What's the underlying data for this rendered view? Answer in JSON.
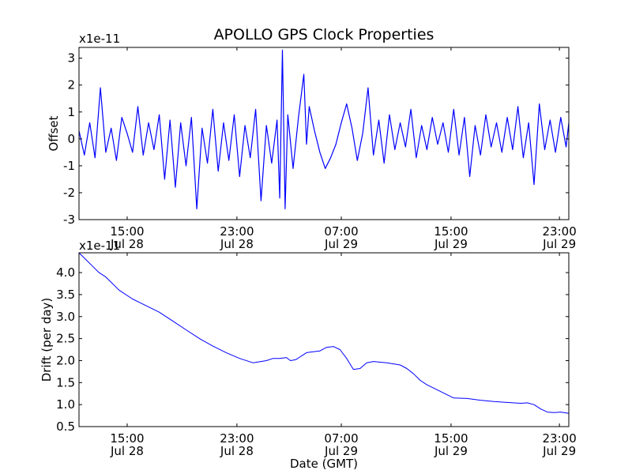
{
  "colors": {
    "line": "#0000ff",
    "axes": "#000000",
    "background": "#ffffff"
  },
  "chart_data": [
    {
      "type": "line",
      "title": "APOLLO GPS Clock Properties",
      "xlabel": "",
      "ylabel": "Offset",
      "scale_label": "x1e-11",
      "x_unit": "hours from 11:00 GMT Jul 28",
      "xlim": [
        0,
        36.6
      ],
      "ylim": [
        -3,
        3.4
      ],
      "yticks": [
        {
          "v": -3,
          "label": "-3"
        },
        {
          "v": -2,
          "label": "-2"
        },
        {
          "v": -1,
          "label": "-1"
        },
        {
          "v": 0,
          "label": "0"
        },
        {
          "v": 1,
          "label": "1"
        },
        {
          "v": 2,
          "label": "2"
        },
        {
          "v": 3,
          "label": "3"
        }
      ],
      "xticks": [
        {
          "v": 3.6,
          "time": "15:00",
          "date": "Jul 28"
        },
        {
          "v": 11.8,
          "time": "23:00",
          "date": "Jul 28"
        },
        {
          "v": 19.6,
          "time": "07:00",
          "date": "Jul 29"
        },
        {
          "v": 27.8,
          "time": "15:00",
          "date": "Jul 29"
        },
        {
          "v": 35.9,
          "time": "23:00",
          "date": "Jul 29"
        }
      ],
      "series": [
        {
          "x": [
            0,
            0.4,
            0.8,
            1.2,
            1.6,
            2,
            2.4,
            2.8,
            3.2,
            3.6,
            4,
            4.4,
            4.8,
            5.2,
            5.6,
            6,
            6.4,
            6.8,
            7.2,
            7.6,
            8,
            8.4,
            8.8,
            9.2,
            9.6,
            10,
            10.4,
            10.8,
            11.2,
            11.6,
            12,
            12.4,
            12.8,
            13.2,
            13.6,
            14,
            14.4,
            14.8,
            15,
            15.2,
            15.4,
            15.6,
            16,
            16.4,
            16.8,
            17,
            17.2,
            17.6,
            18,
            18.4,
            18.8,
            19.2,
            19.6,
            20,
            20.4,
            20.8,
            21.2,
            21.6,
            22,
            22.4,
            22.8,
            23.2,
            23.6,
            24,
            24.4,
            24.8,
            25.2,
            25.6,
            26,
            26.4,
            26.8,
            27.2,
            27.6,
            28,
            28.4,
            28.8,
            29.2,
            29.6,
            30,
            30.4,
            30.8,
            31.2,
            31.6,
            32,
            32.4,
            32.8,
            33.2,
            33.6,
            34,
            34.4,
            34.8,
            35.2,
            35.6,
            36,
            36.4,
            36.6
          ],
          "y": [
            0.3,
            -0.6,
            0.6,
            -0.7,
            1.9,
            -0.5,
            0.4,
            -0.8,
            0.8,
            0.2,
            -0.5,
            1.2,
            -0.6,
            0.6,
            -0.4,
            0.9,
            -1.5,
            0.7,
            -1.8,
            0.6,
            -1,
            0.8,
            -2.6,
            0.4,
            -0.9,
            1.1,
            -1.2,
            0.6,
            -0.8,
            0.9,
            -1.4,
            0.5,
            -0.7,
            1.1,
            -2.3,
            0.5,
            -0.9,
            0.7,
            -2.2,
            3.3,
            -2.6,
            0.9,
            -1.1,
            0.8,
            2.4,
            -0.2,
            1.2,
            0.3,
            -0.5,
            -1.1,
            -0.7,
            -0.2,
            0.6,
            1.3,
            0.4,
            -0.8,
            0.2,
            1.9,
            -0.6,
            0.7,
            -0.9,
            0.9,
            -0.4,
            0.6,
            -0.3,
            1.1,
            -0.7,
            0.5,
            -0.4,
            0.8,
            -0.2,
            0.6,
            -0.5,
            1.1,
            -0.6,
            0.8,
            -1.4,
            0.5,
            -0.6,
            0.9,
            -0.3,
            0.6,
            -0.5,
            0.8,
            -0.4,
            1.2,
            -0.7,
            0.6,
            -1.7,
            1.3,
            -0.4,
            0.7,
            -0.5,
            0.8,
            -0.3,
            0.6
          ]
        }
      ]
    },
    {
      "type": "line",
      "title": "",
      "xlabel": "Date (GMT)",
      "ylabel": "Drift (per day)",
      "scale_label": "x1e-11",
      "x_unit": "hours from 11:00 GMT Jul 28",
      "xlim": [
        0,
        36.6
      ],
      "ylim": [
        0.5,
        4.45
      ],
      "yticks": [
        {
          "v": 0.5,
          "label": "0.5"
        },
        {
          "v": 1.0,
          "label": "1.0"
        },
        {
          "v": 1.5,
          "label": "1.5"
        },
        {
          "v": 2.0,
          "label": "2.0"
        },
        {
          "v": 2.5,
          "label": "2.5"
        },
        {
          "v": 3.0,
          "label": "3.0"
        },
        {
          "v": 3.5,
          "label": "3.5"
        },
        {
          "v": 4.0,
          "label": "4.0"
        }
      ],
      "xticks": [
        {
          "v": 3.6,
          "time": "15:00",
          "date": "Jul 28"
        },
        {
          "v": 11.8,
          "time": "23:00",
          "date": "Jul 28"
        },
        {
          "v": 19.6,
          "time": "07:00",
          "date": "Jul 29"
        },
        {
          "v": 27.8,
          "time": "15:00",
          "date": "Jul 29"
        },
        {
          "v": 35.9,
          "time": "23:00",
          "date": "Jul 29"
        }
      ],
      "series": [
        {
          "x": [
            0,
            0.5,
            1,
            1.5,
            2,
            3,
            4,
            5,
            6,
            7,
            8,
            9,
            10,
            11,
            12,
            13,
            14,
            14.5,
            15,
            15.5,
            15.8,
            16.2,
            17,
            17.5,
            18,
            18.5,
            19,
            19.5,
            20,
            20.5,
            21,
            21.5,
            22,
            23,
            24,
            24.5,
            25,
            25.5,
            26,
            27,
            28,
            29,
            30,
            31,
            32,
            33,
            33.5,
            34,
            34.5,
            35,
            35.5,
            36,
            36.6
          ],
          "y": [
            4.45,
            4.3,
            4.15,
            4,
            3.9,
            3.6,
            3.4,
            3.25,
            3.1,
            2.9,
            2.7,
            2.5,
            2.33,
            2.18,
            2.05,
            1.95,
            2,
            2.05,
            2.05,
            2.07,
            2,
            2.02,
            2.18,
            2.2,
            2.22,
            2.3,
            2.32,
            2.25,
            2.05,
            1.8,
            1.82,
            1.95,
            1.98,
            1.95,
            1.9,
            1.82,
            1.7,
            1.55,
            1.45,
            1.3,
            1.15,
            1.14,
            1.1,
            1.07,
            1.05,
            1.03,
            1.04,
            1,
            0.9,
            0.83,
            0.82,
            0.83,
            0.8
          ]
        }
      ]
    }
  ]
}
